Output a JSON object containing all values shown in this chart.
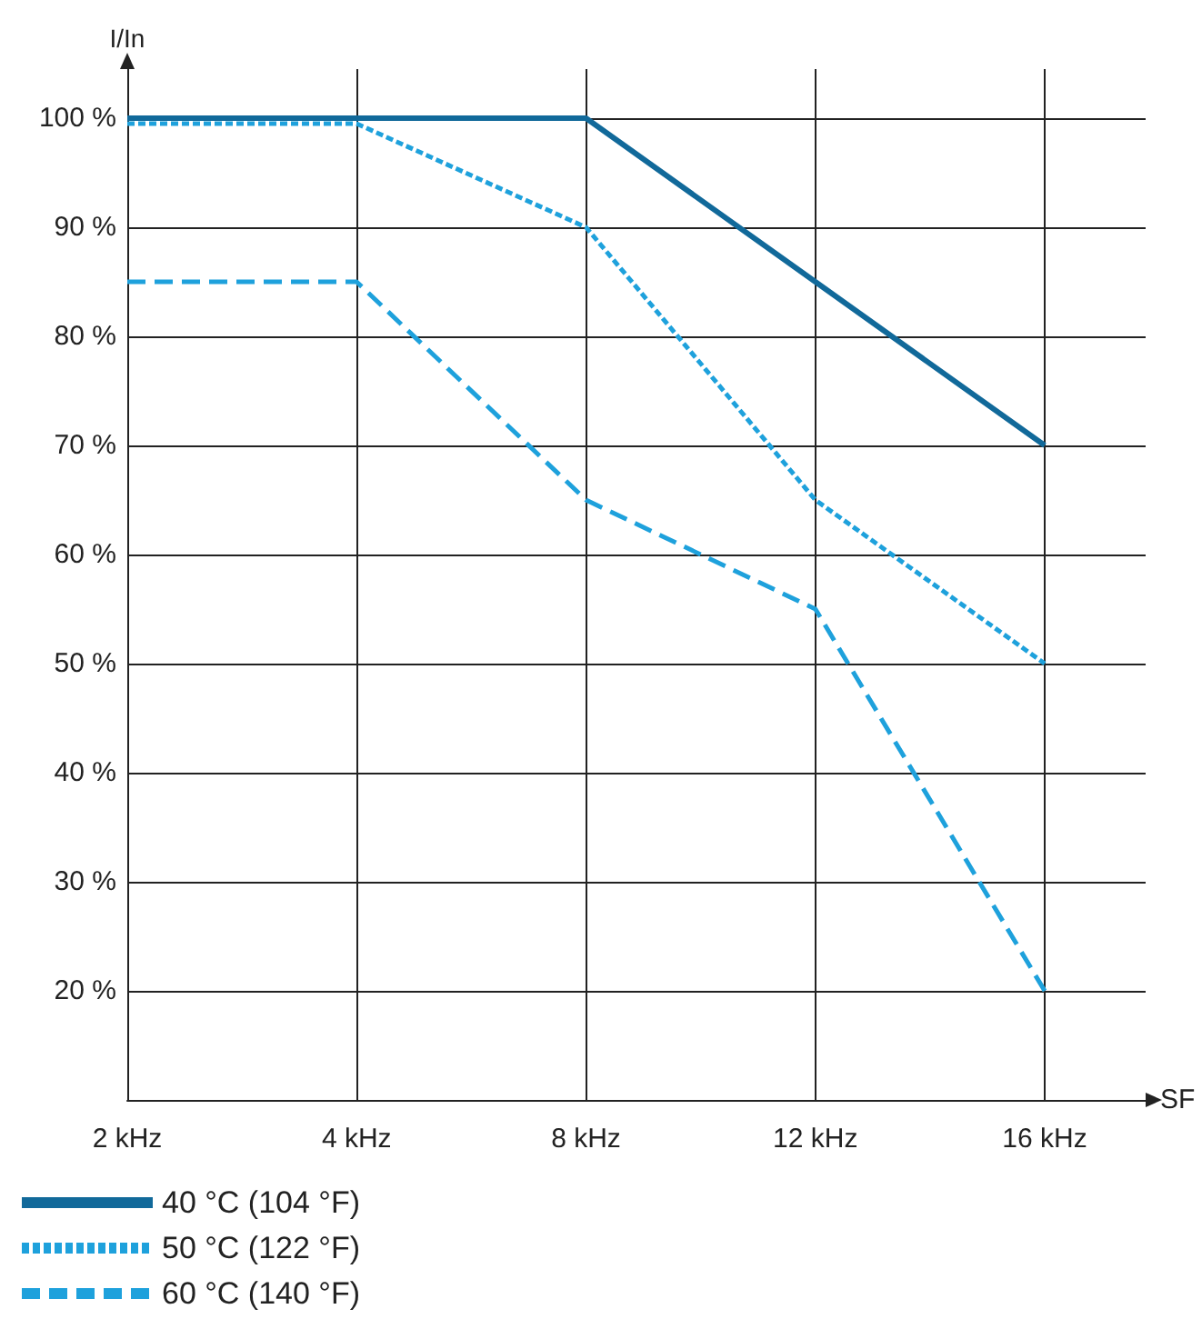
{
  "chart_data": {
    "type": "line",
    "xlabel": "SF",
    "ylabel": "I/In",
    "categories": [
      "2 kHz",
      "4 kHz",
      "8 kHz",
      "12 kHz",
      "16 kHz"
    ],
    "series": [
      {
        "name": "40 °C (104 °F)",
        "color": "#11699a",
        "line_style": "solid",
        "values": [
          100,
          100,
          100,
          85,
          70
        ]
      },
      {
        "name": "50 °C (122 °F)",
        "color": "#1ea1dc",
        "line_style": "dotted",
        "values": [
          99.5,
          99.5,
          90,
          65,
          50
        ]
      },
      {
        "name": "60 °C (140 °F)",
        "color": "#1ea1dc",
        "line_style": "dashed",
        "values": [
          85,
          85,
          65,
          55,
          20
        ]
      }
    ],
    "ylim": [
      10,
      104.5
    ],
    "yticks": [
      {
        "value": 20,
        "label": "20 %"
      },
      {
        "value": 30,
        "label": "30 %"
      },
      {
        "value": 40,
        "label": "40 %"
      },
      {
        "value": 50,
        "label": "50 %"
      },
      {
        "value": 60,
        "label": "60 %"
      },
      {
        "value": 70,
        "label": "70 %"
      },
      {
        "value": 80,
        "label": "80 %"
      },
      {
        "value": 90,
        "label": "90 %"
      },
      {
        "value": 100,
        "label": "100 %"
      }
    ],
    "grid": true,
    "legend": "bottom left",
    "marker": "none"
  }
}
